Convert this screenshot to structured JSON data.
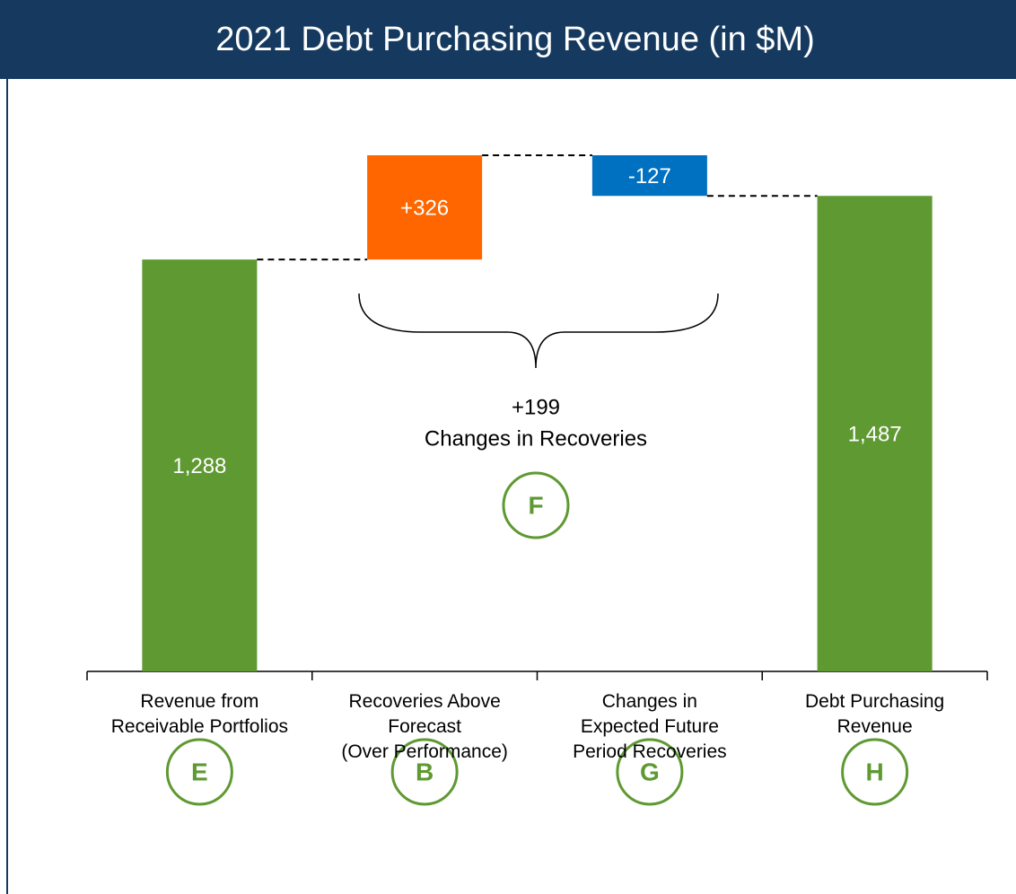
{
  "chart_data": {
    "type": "waterfall",
    "title": "2021 Debt Purchasing Revenue (in $M)",
    "categories": [
      "Revenue from\nReceivable Portfolios",
      "Recoveries Above\nForecast\n(Over Performance)",
      "Changes in\nExpected Future\nPeriod Recoveries",
      "Debt Purchasing\nRevenue"
    ],
    "values": [
      1288,
      326,
      -127,
      1487
    ],
    "value_labels": [
      "1,288",
      "+326",
      "-127",
      "1,487"
    ],
    "colors": [
      "#5f9932",
      "#ff6600",
      "#0070c0",
      "#5f9932"
    ],
    "markers": [
      "E",
      "B",
      "G",
      "H"
    ],
    "brace": {
      "value_label": "+199",
      "label": "Changes in Recoveries",
      "marker": "F"
    }
  }
}
